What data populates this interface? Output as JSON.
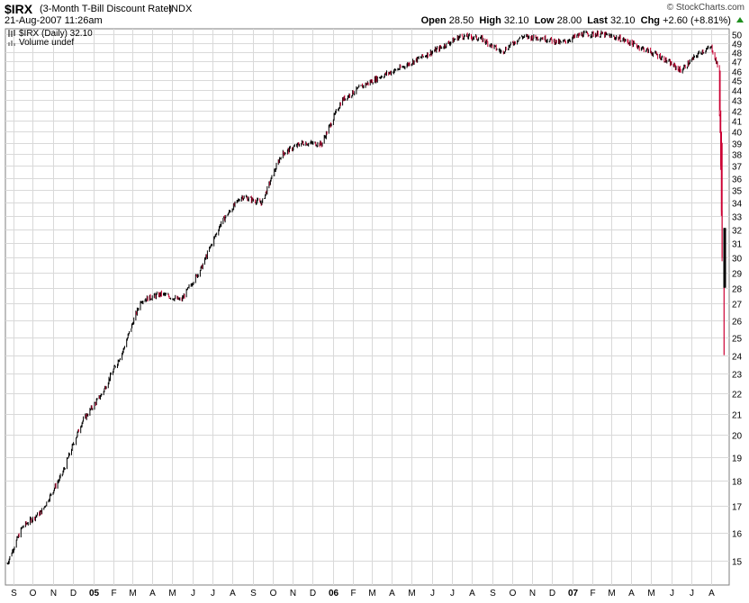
{
  "header": {
    "symbol": "$IRX",
    "description": "(3-Month T-Bill Discount Rate)",
    "exchange": "INDX",
    "datetime": "21-Aug-2007 11:26am",
    "credit": "© StockCharts.com",
    "open_label": "Open",
    "open": "28.50",
    "high_label": "High",
    "high": "32.10",
    "low_label": "Low",
    "low": "28.00",
    "last_label": "Last",
    "last": "32.10",
    "chg_label": "Chg",
    "chg": "+2.60 (+8.81%)"
  },
  "legend": {
    "series": "$IRX (Daily) 32.10",
    "volume": "Volume undef"
  },
  "colors": {
    "up": "#000000",
    "down": "#cc0033",
    "grid": "#d9d9d9",
    "arrow": "#1f8f1f"
  },
  "chart_data": {
    "type": "line",
    "y_scale": "log",
    "ylim": [
      14.5,
      50.5
    ],
    "yticks": [
      15,
      16,
      17,
      18,
      19,
      20,
      21,
      22,
      23,
      24,
      25,
      26,
      27,
      28,
      29,
      30,
      31,
      32,
      33,
      34,
      35,
      36,
      37,
      38,
      39,
      40,
      41,
      42,
      43,
      44,
      45,
      46,
      47,
      48,
      49,
      50
    ],
    "xticks": [
      "S",
      "O",
      "N",
      "D",
      "05",
      "F",
      "M",
      "A",
      "M",
      "J",
      "J",
      "A",
      "S",
      "O",
      "N",
      "D",
      "06",
      "F",
      "M",
      "A",
      "M",
      "J",
      "J",
      "A",
      "S",
      "O",
      "N",
      "D",
      "07",
      "F",
      "M",
      "A",
      "M",
      "J",
      "J",
      "A"
    ],
    "xlim": [
      "2004-08-23",
      "2007-08-21"
    ],
    "series": [
      {
        "values_approx_monthly_close": [
          [
            "2004-08-23",
            14.9
          ],
          [
            "2004-09-15",
            16.2
          ],
          [
            "2004-10-15",
            16.8
          ],
          [
            "2004-11-15",
            18.3
          ],
          [
            "2004-12-15",
            20.6
          ],
          [
            "2005-01-15",
            22.0
          ],
          [
            "2005-02-15",
            24.2
          ],
          [
            "2005-03-15",
            27.2
          ],
          [
            "2005-04-15",
            27.6
          ],
          [
            "2005-05-15",
            27.2
          ],
          [
            "2005-06-15",
            29.3
          ],
          [
            "2005-07-15",
            32.5
          ],
          [
            "2005-08-15",
            34.5
          ],
          [
            "2005-09-15",
            34.0
          ],
          [
            "2005-10-15",
            38.0
          ],
          [
            "2005-11-15",
            39.0
          ],
          [
            "2005-12-15",
            38.9
          ],
          [
            "2006-01-15",
            43.0
          ],
          [
            "2006-02-15",
            44.4
          ],
          [
            "2006-03-15",
            45.4
          ],
          [
            "2006-04-15",
            46.3
          ],
          [
            "2006-05-15",
            47.4
          ],
          [
            "2006-06-15",
            48.5
          ],
          [
            "2006-07-15",
            49.8
          ],
          [
            "2006-08-15",
            49.5
          ],
          [
            "2006-09-15",
            48.0
          ],
          [
            "2006-10-15",
            49.7
          ],
          [
            "2006-11-15",
            49.6
          ],
          [
            "2006-12-15",
            49.0
          ],
          [
            "2007-01-15",
            50.0
          ],
          [
            "2007-02-15",
            50.0
          ],
          [
            "2007-03-15",
            49.5
          ],
          [
            "2007-04-15",
            48.5
          ],
          [
            "2007-05-15",
            47.5
          ],
          [
            "2007-06-15",
            46.0
          ],
          [
            "2007-07-15",
            48.0
          ],
          [
            "2007-08-01",
            48.5
          ],
          [
            "2007-08-10",
            46.5
          ],
          [
            "2007-08-14",
            40.0
          ],
          [
            "2007-08-17",
            30.0
          ],
          [
            "2007-08-20",
            29.5
          ],
          [
            "2007-08-21",
            32.1
          ]
        ],
        "last_bar": {
          "open": 28.5,
          "high": 32.1,
          "low": 28.0,
          "close": 32.1
        },
        "prior_bar_low": 24.0
      }
    ]
  }
}
